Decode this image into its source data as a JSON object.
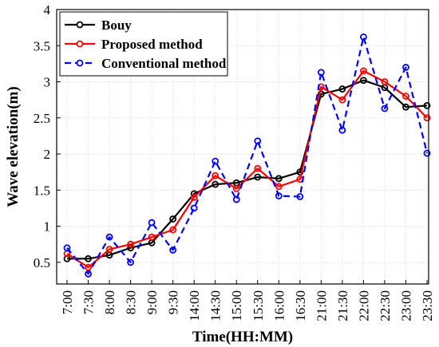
{
  "chart_data": {
    "type": "line",
    "categories": [
      "7:00",
      "7:30",
      "8:00",
      "8:30",
      "9:00",
      "9:30",
      "14:00",
      "14:30",
      "15:00",
      "15:30",
      "16:00",
      "16:30",
      "21:00",
      "21:30",
      "22:00",
      "22:30",
      "23:00",
      "23:30"
    ],
    "series": [
      {
        "name": "Bouy",
        "color": "#000000",
        "line_style": "solid",
        "marker": "circle",
        "values": [
          0.55,
          0.55,
          0.6,
          0.7,
          0.77,
          1.1,
          1.45,
          1.58,
          1.6,
          1.68,
          1.66,
          1.75,
          2.83,
          2.9,
          3.02,
          2.92,
          2.65,
          2.67
        ]
      },
      {
        "name": "Proposed method",
        "color": "#ff0000",
        "line_style": "solid",
        "marker": "circle",
        "values": [
          0.62,
          0.43,
          0.68,
          0.75,
          0.85,
          0.95,
          1.4,
          1.7,
          1.52,
          1.8,
          1.55,
          1.65,
          2.93,
          2.75,
          3.15,
          3.0,
          2.8,
          2.5
        ]
      },
      {
        "name": "Conventional method",
        "color": "#0000ff",
        "line_style": "dashed",
        "marker": "circle",
        "values": [
          0.7,
          0.34,
          0.85,
          0.5,
          1.05,
          0.67,
          1.25,
          1.9,
          1.37,
          2.18,
          1.42,
          1.41,
          3.13,
          2.33,
          3.62,
          2.63,
          3.2,
          2.01
        ]
      }
    ],
    "title": "",
    "xlabel": "Time(HH:MM)",
    "ylabel": "Wave elevation(m)",
    "ylim": [
      0.2,
      4
    ],
    "y_ticks": [
      "0.5",
      "1",
      "1.5",
      "2",
      "2.5",
      "3",
      "3.5",
      "4"
    ],
    "grid": true,
    "legend": "top-left"
  }
}
